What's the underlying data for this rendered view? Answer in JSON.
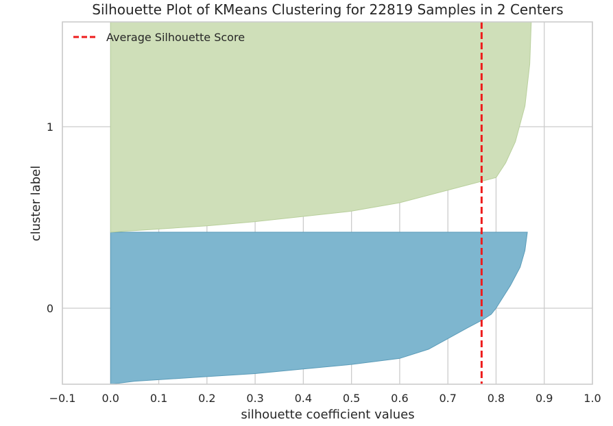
{
  "chart_data": {
    "type": "area",
    "title": "Silhouette Plot of KMeans Clustering for 22819 Samples in 2 Centers",
    "xlabel": "silhouette coefficient values",
    "ylabel": "cluster label",
    "xlim": [
      -0.1,
      1.0
    ],
    "xticks": [
      -0.1,
      0.0,
      0.1,
      0.2,
      0.3,
      0.4,
      0.5,
      0.6,
      0.7,
      0.8,
      0.9,
      1.0
    ],
    "x_tick_labels": [
      "−0.1",
      "0.0",
      "0.1",
      "0.2",
      "0.3",
      "0.4",
      "0.5",
      "0.6",
      "0.7",
      "0.8",
      "0.9",
      "1.0"
    ],
    "yticks": [
      {
        "value": 0,
        "label": "0"
      },
      {
        "value": 1,
        "label": "1"
      }
    ],
    "grid": true,
    "legend": {
      "position": "top-left",
      "entries": [
        {
          "label": "Average Silhouette Score",
          "color": "#ee1c1c",
          "style": "dashed"
        }
      ]
    },
    "average_silhouette_score": 0.77,
    "series": [
      {
        "cluster": 0,
        "color": "#7eb6cf",
        "edge_color": "#5a9bb8",
        "silhouette_profile": [
          [
            0.0,
            0.0
          ],
          [
            0.05,
            0.02
          ],
          [
            0.2,
            0.05
          ],
          [
            0.3,
            0.07
          ],
          [
            0.4,
            0.1
          ],
          [
            0.5,
            0.13
          ],
          [
            0.6,
            0.17
          ],
          [
            0.66,
            0.23
          ],
          [
            0.7,
            0.3
          ],
          [
            0.74,
            0.37
          ],
          [
            0.77,
            0.42
          ],
          [
            0.79,
            0.46
          ],
          [
            0.8,
            0.5
          ],
          [
            0.81,
            0.55
          ],
          [
            0.83,
            0.65
          ],
          [
            0.85,
            0.77
          ],
          [
            0.86,
            0.88
          ],
          [
            0.865,
            1.0
          ]
        ]
      },
      {
        "cluster": 1,
        "color": "#cfdfb9",
        "edge_color": "#b8cf9b",
        "silhouette_profile": [
          [
            0.0,
            0.0
          ],
          [
            0.1,
            0.015
          ],
          [
            0.2,
            0.03
          ],
          [
            0.3,
            0.05
          ],
          [
            0.4,
            0.075
          ],
          [
            0.5,
            0.1
          ],
          [
            0.6,
            0.14
          ],
          [
            0.7,
            0.2
          ],
          [
            0.8,
            0.26
          ],
          [
            0.82,
            0.33
          ],
          [
            0.84,
            0.43
          ],
          [
            0.86,
            0.6
          ],
          [
            0.87,
            0.8
          ],
          [
            0.873,
            1.0
          ]
        ]
      }
    ]
  }
}
